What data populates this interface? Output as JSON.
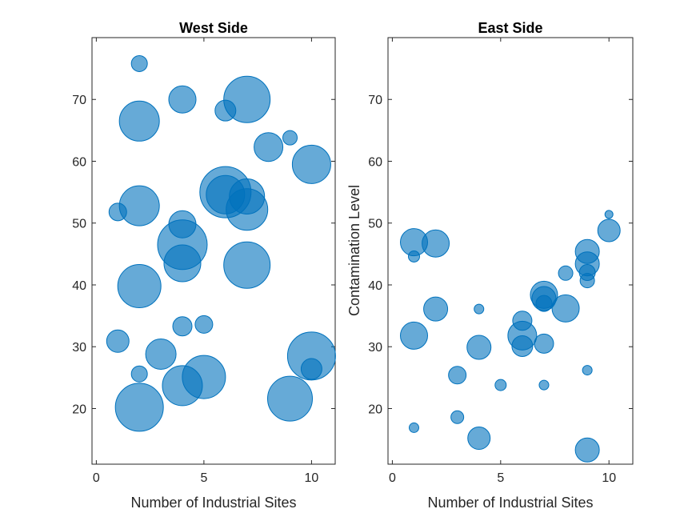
{
  "chart_data": [
    {
      "type": "scatter",
      "title": "West Side",
      "xlabel": "Number of Industrial Sites",
      "ylabel": "",
      "xlim": [
        -0.2,
        11.1
      ],
      "ylim": [
        11,
        80
      ],
      "xticks": [
        0,
        5,
        10
      ],
      "yticks": [
        20,
        30,
        40,
        50,
        60,
        70
      ],
      "color": "#0072BD",
      "fill_opacity": 0.6,
      "grid": false,
      "points": [
        {
          "x": 2,
          "y": 75.8,
          "size": 10
        },
        {
          "x": 7,
          "y": 70,
          "size": 29
        },
        {
          "x": 4,
          "y": 70,
          "size": 17
        },
        {
          "x": 6,
          "y": 68.2,
          "size": 13
        },
        {
          "x": 2,
          "y": 66.5,
          "size": 25
        },
        {
          "x": 9,
          "y": 63.8,
          "size": 9
        },
        {
          "x": 8,
          "y": 62.3,
          "size": 18
        },
        {
          "x": 10,
          "y": 59.5,
          "size": 24
        },
        {
          "x": 6,
          "y": 55,
          "size": 32
        },
        {
          "x": 7,
          "y": 54.3,
          "size": 22
        },
        {
          "x": 6,
          "y": 54.6,
          "size": 24
        },
        {
          "x": 2,
          "y": 52.8,
          "size": 25
        },
        {
          "x": 7,
          "y": 52.2,
          "size": 26
        },
        {
          "x": 1,
          "y": 51.8,
          "size": 11
        },
        {
          "x": 4,
          "y": 49.8,
          "size": 17
        },
        {
          "x": 4,
          "y": 46.5,
          "size": 31
        },
        {
          "x": 4,
          "y": 43.5,
          "size": 23
        },
        {
          "x": 7,
          "y": 43.2,
          "size": 29
        },
        {
          "x": 2,
          "y": 39.8,
          "size": 27
        },
        {
          "x": 4,
          "y": 33.3,
          "size": 12
        },
        {
          "x": 5,
          "y": 33.6,
          "size": 11
        },
        {
          "x": 1,
          "y": 30.9,
          "size": 14
        },
        {
          "x": 3,
          "y": 28.8,
          "size": 19
        },
        {
          "x": 10,
          "y": 28.5,
          "size": 30
        },
        {
          "x": 10,
          "y": 26.4,
          "size": 13
        },
        {
          "x": 2,
          "y": 25.6,
          "size": 10
        },
        {
          "x": 5,
          "y": 25.1,
          "size": 27
        },
        {
          "x": 4,
          "y": 23.7,
          "size": 25
        },
        {
          "x": 9,
          "y": 21.6,
          "size": 28
        },
        {
          "x": 2,
          "y": 20.2,
          "size": 30
        }
      ]
    },
    {
      "type": "scatter",
      "title": "East Side",
      "xlabel": "Number of Industrial Sites",
      "ylabel": "Contamination Level",
      "xlim": [
        -0.2,
        11.1
      ],
      "ylim": [
        11,
        80
      ],
      "xticks": [
        0,
        5,
        10
      ],
      "yticks": [
        20,
        30,
        40,
        50,
        60,
        70
      ],
      "color": "#0072BD",
      "fill_opacity": 0.6,
      "grid": false,
      "points": [
        {
          "x": 10,
          "y": 51.4,
          "size": 5
        },
        {
          "x": 10,
          "y": 48.8,
          "size": 14
        },
        {
          "x": 1,
          "y": 46.9,
          "size": 17
        },
        {
          "x": 2,
          "y": 46.7,
          "size": 17
        },
        {
          "x": 9,
          "y": 45.4,
          "size": 15
        },
        {
          "x": 1,
          "y": 44.6,
          "size": 7
        },
        {
          "x": 9,
          "y": 43.4,
          "size": 15
        },
        {
          "x": 9,
          "y": 42,
          "size": 10
        },
        {
          "x": 8,
          "y": 41.9,
          "size": 9
        },
        {
          "x": 9,
          "y": 40.7,
          "size": 9
        },
        {
          "x": 7,
          "y": 38.4,
          "size": 17
        },
        {
          "x": 7,
          "y": 37.8,
          "size": 15
        },
        {
          "x": 7,
          "y": 37,
          "size": 10
        },
        {
          "x": 8,
          "y": 36.2,
          "size": 17
        },
        {
          "x": 2,
          "y": 36.1,
          "size": 15
        },
        {
          "x": 4,
          "y": 36.1,
          "size": 6
        },
        {
          "x": 6,
          "y": 34.2,
          "size": 12
        },
        {
          "x": 1,
          "y": 31.8,
          "size": 17
        },
        {
          "x": 6,
          "y": 31.8,
          "size": 18
        },
        {
          "x": 6,
          "y": 30.1,
          "size": 13
        },
        {
          "x": 7,
          "y": 30.5,
          "size": 12
        },
        {
          "x": 4,
          "y": 29.9,
          "size": 15
        },
        {
          "x": 9,
          "y": 26.2,
          "size": 6
        },
        {
          "x": 3,
          "y": 25.4,
          "size": 11
        },
        {
          "x": 5,
          "y": 23.8,
          "size": 7
        },
        {
          "x": 7,
          "y": 23.8,
          "size": 6
        },
        {
          "x": 3,
          "y": 18.6,
          "size": 8
        },
        {
          "x": 1,
          "y": 16.9,
          "size": 6
        },
        {
          "x": 4,
          "y": 15.2,
          "size": 14
        },
        {
          "x": 9,
          "y": 13.3,
          "size": 15
        }
      ]
    }
  ]
}
